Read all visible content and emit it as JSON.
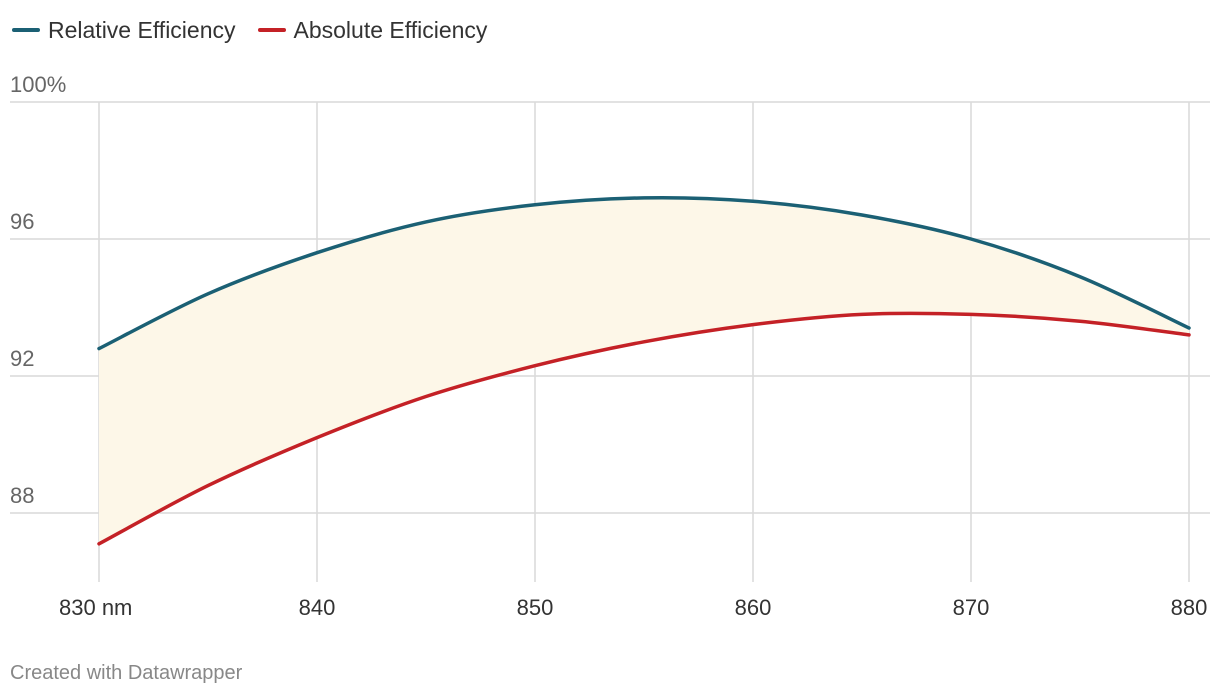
{
  "chart_data": {
    "type": "line",
    "title": "",
    "xlabel": "",
    "ylabel": "",
    "x": [
      830,
      835,
      840,
      845,
      850,
      855,
      860,
      865,
      870,
      875,
      880
    ],
    "x_ticks": [
      830,
      840,
      850,
      860,
      870,
      880
    ],
    "x_tick_labels": [
      "830 nm",
      "840",
      "850",
      "860",
      "870",
      "880"
    ],
    "xlim": [
      830,
      880
    ],
    "y_ticks": [
      88,
      92,
      96,
      100
    ],
    "y_tick_labels": [
      "88",
      "92",
      "96",
      "100%"
    ],
    "ylim": [
      86,
      100
    ],
    "grid": true,
    "series": [
      {
        "name": "Relative Efficiency",
        "color": "#1b6074",
        "values": [
          92.8,
          94.4,
          95.6,
          96.5,
          97.0,
          97.2,
          97.1,
          96.7,
          96.0,
          94.9,
          93.4
        ]
      },
      {
        "name": "Absolute Efficiency",
        "color": "#c42126",
        "values": [
          87.1,
          88.8,
          90.2,
          91.4,
          92.3,
          93.0,
          93.5,
          93.8,
          93.8,
          93.6,
          93.2
        ]
      }
    ],
    "band_fill": "#fdf7e8"
  },
  "legend": [
    {
      "label": "Relative Efficiency",
      "color": "#1b6074"
    },
    {
      "label": "Absolute Efficiency",
      "color": "#c42126"
    }
  ],
  "footer": {
    "text": "Created with Datawrapper"
  }
}
